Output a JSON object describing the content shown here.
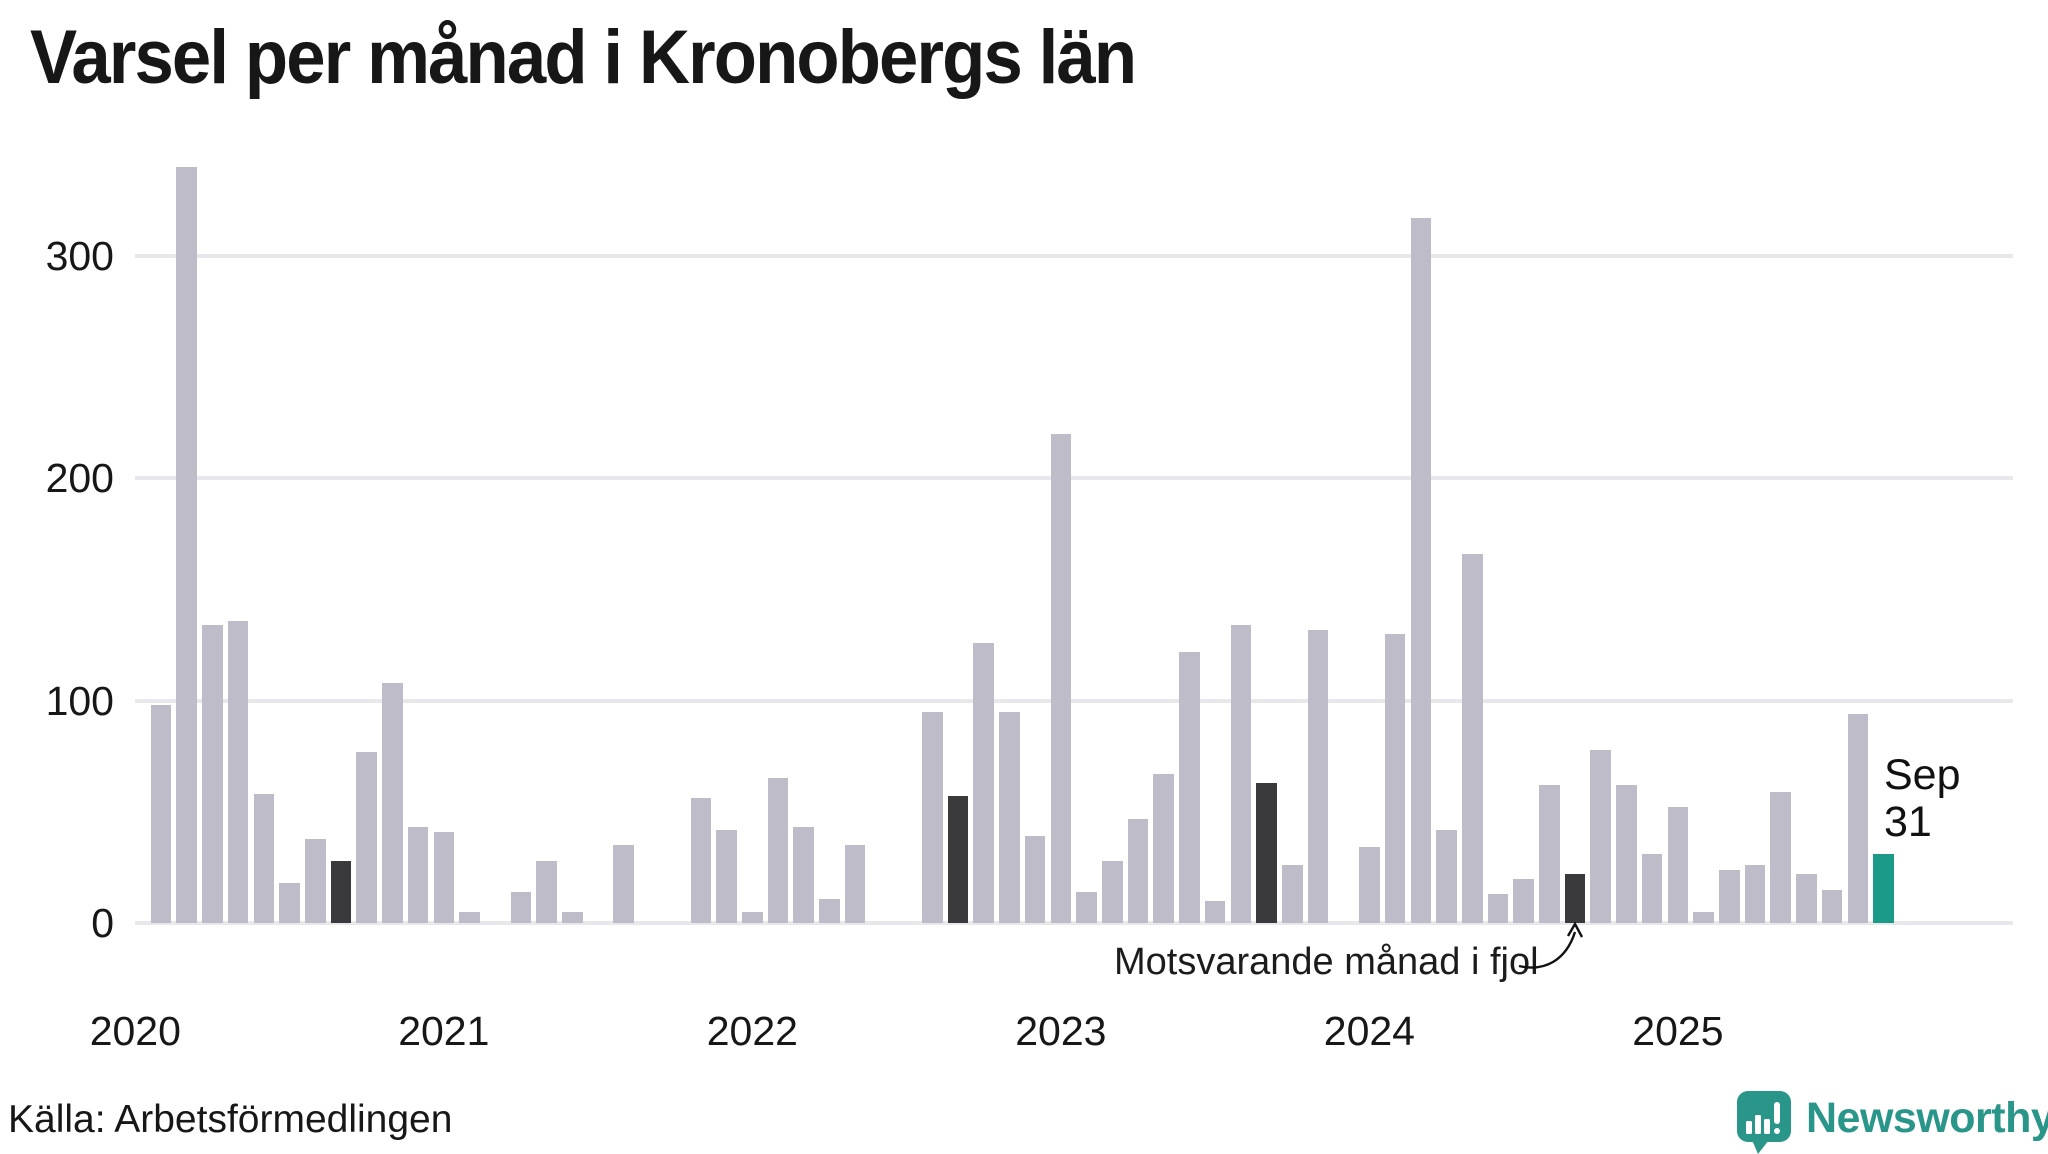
{
  "title": "Varsel per månad i Kronobergs län",
  "source": "Källa: Arbetsförmedlingen",
  "annotation": {
    "text": "Motsvarande månad i fjol",
    "target_month": "2024-09"
  },
  "latest_label": {
    "month": "Sep",
    "value": "31",
    "target_month": "2025-09"
  },
  "logo": {
    "text": "Newsworthy"
  },
  "colors": {
    "bar_default": "#bdbcc8",
    "bar_same_month_last_year": "#3a3a3c",
    "bar_latest": "#1a9a87",
    "grid": "#e8e8ec",
    "text": "#171717",
    "logo_teal": "#2a968a"
  },
  "chart_data": {
    "type": "bar",
    "title": "Varsel per månad i Kronobergs län",
    "xlabel": "",
    "ylabel": "",
    "ylim": [
      0,
      345
    ],
    "yticks": [
      0,
      100,
      200,
      300
    ],
    "grid": "horizontal",
    "legend_position": "none",
    "year_ticks": [
      "2020",
      "2021",
      "2022",
      "2023",
      "2024",
      "2025"
    ],
    "series_name": "Varsel per månad",
    "series": [
      {
        "month": "2020-01",
        "value": 0,
        "style": "normal"
      },
      {
        "month": "2020-02",
        "value": 98,
        "style": "normal"
      },
      {
        "month": "2020-03",
        "value": 340,
        "style": "normal"
      },
      {
        "month": "2020-04",
        "value": 134,
        "style": "normal"
      },
      {
        "month": "2020-05",
        "value": 136,
        "style": "normal"
      },
      {
        "month": "2020-06",
        "value": 58,
        "style": "normal"
      },
      {
        "month": "2020-07",
        "value": 18,
        "style": "normal"
      },
      {
        "month": "2020-08",
        "value": 38,
        "style": "normal"
      },
      {
        "month": "2020-09",
        "value": 28,
        "style": "dark"
      },
      {
        "month": "2020-10",
        "value": 77,
        "style": "normal"
      },
      {
        "month": "2020-11",
        "value": 108,
        "style": "normal"
      },
      {
        "month": "2020-12",
        "value": 43,
        "style": "normal"
      },
      {
        "month": "2021-01",
        "value": 41,
        "style": "normal"
      },
      {
        "month": "2021-02",
        "value": 5,
        "style": "normal"
      },
      {
        "month": "2021-03",
        "value": 0,
        "style": "normal"
      },
      {
        "month": "2021-04",
        "value": 14,
        "style": "normal"
      },
      {
        "month": "2021-05",
        "value": 28,
        "style": "normal"
      },
      {
        "month": "2021-06",
        "value": 5,
        "style": "normal"
      },
      {
        "month": "2021-07",
        "value": 0,
        "style": "normal"
      },
      {
        "month": "2021-08",
        "value": 35,
        "style": "normal"
      },
      {
        "month": "2021-09",
        "value": 0,
        "style": "dark"
      },
      {
        "month": "2021-10",
        "value": 0,
        "style": "normal"
      },
      {
        "month": "2021-11",
        "value": 56,
        "style": "normal"
      },
      {
        "month": "2021-12",
        "value": 42,
        "style": "normal"
      },
      {
        "month": "2022-01",
        "value": 5,
        "style": "normal"
      },
      {
        "month": "2022-02",
        "value": 65,
        "style": "normal"
      },
      {
        "month": "2022-03",
        "value": 43,
        "style": "normal"
      },
      {
        "month": "2022-04",
        "value": 11,
        "style": "normal"
      },
      {
        "month": "2022-05",
        "value": 35,
        "style": "normal"
      },
      {
        "month": "2022-06",
        "value": 0,
        "style": "normal"
      },
      {
        "month": "2022-07",
        "value": 0,
        "style": "normal"
      },
      {
        "month": "2022-08",
        "value": 95,
        "style": "normal"
      },
      {
        "month": "2022-09",
        "value": 57,
        "style": "dark"
      },
      {
        "month": "2022-10",
        "value": 126,
        "style": "normal"
      },
      {
        "month": "2022-11",
        "value": 95,
        "style": "normal"
      },
      {
        "month": "2022-12",
        "value": 39,
        "style": "normal"
      },
      {
        "month": "2023-01",
        "value": 220,
        "style": "normal"
      },
      {
        "month": "2023-02",
        "value": 14,
        "style": "normal"
      },
      {
        "month": "2023-03",
        "value": 28,
        "style": "normal"
      },
      {
        "month": "2023-04",
        "value": 47,
        "style": "normal"
      },
      {
        "month": "2023-05",
        "value": 67,
        "style": "normal"
      },
      {
        "month": "2023-06",
        "value": 122,
        "style": "normal"
      },
      {
        "month": "2023-07",
        "value": 10,
        "style": "normal"
      },
      {
        "month": "2023-08",
        "value": 134,
        "style": "normal"
      },
      {
        "month": "2023-09",
        "value": 63,
        "style": "dark"
      },
      {
        "month": "2023-10",
        "value": 26,
        "style": "normal"
      },
      {
        "month": "2023-11",
        "value": 132,
        "style": "normal"
      },
      {
        "month": "2023-12",
        "value": 0,
        "style": "normal"
      },
      {
        "month": "2024-01",
        "value": 34,
        "style": "normal"
      },
      {
        "month": "2024-02",
        "value": 130,
        "style": "normal"
      },
      {
        "month": "2024-03",
        "value": 317,
        "style": "normal"
      },
      {
        "month": "2024-04",
        "value": 42,
        "style": "normal"
      },
      {
        "month": "2024-05",
        "value": 166,
        "style": "normal"
      },
      {
        "month": "2024-06",
        "value": 13,
        "style": "normal"
      },
      {
        "month": "2024-07",
        "value": 20,
        "style": "normal"
      },
      {
        "month": "2024-08",
        "value": 62,
        "style": "normal"
      },
      {
        "month": "2024-09",
        "value": 22,
        "style": "dark"
      },
      {
        "month": "2024-10",
        "value": 78,
        "style": "normal"
      },
      {
        "month": "2024-11",
        "value": 62,
        "style": "normal"
      },
      {
        "month": "2024-12",
        "value": 31,
        "style": "normal"
      },
      {
        "month": "2025-01",
        "value": 52,
        "style": "normal"
      },
      {
        "month": "2025-02",
        "value": 5,
        "style": "normal"
      },
      {
        "month": "2025-03",
        "value": 24,
        "style": "normal"
      },
      {
        "month": "2025-04",
        "value": 26,
        "style": "normal"
      },
      {
        "month": "2025-05",
        "value": 59,
        "style": "normal"
      },
      {
        "month": "2025-06",
        "value": 22,
        "style": "normal"
      },
      {
        "month": "2025-07",
        "value": 15,
        "style": "normal"
      },
      {
        "month": "2025-08",
        "value": 94,
        "style": "normal"
      },
      {
        "month": "2025-09",
        "value": 31,
        "style": "accent"
      }
    ]
  }
}
